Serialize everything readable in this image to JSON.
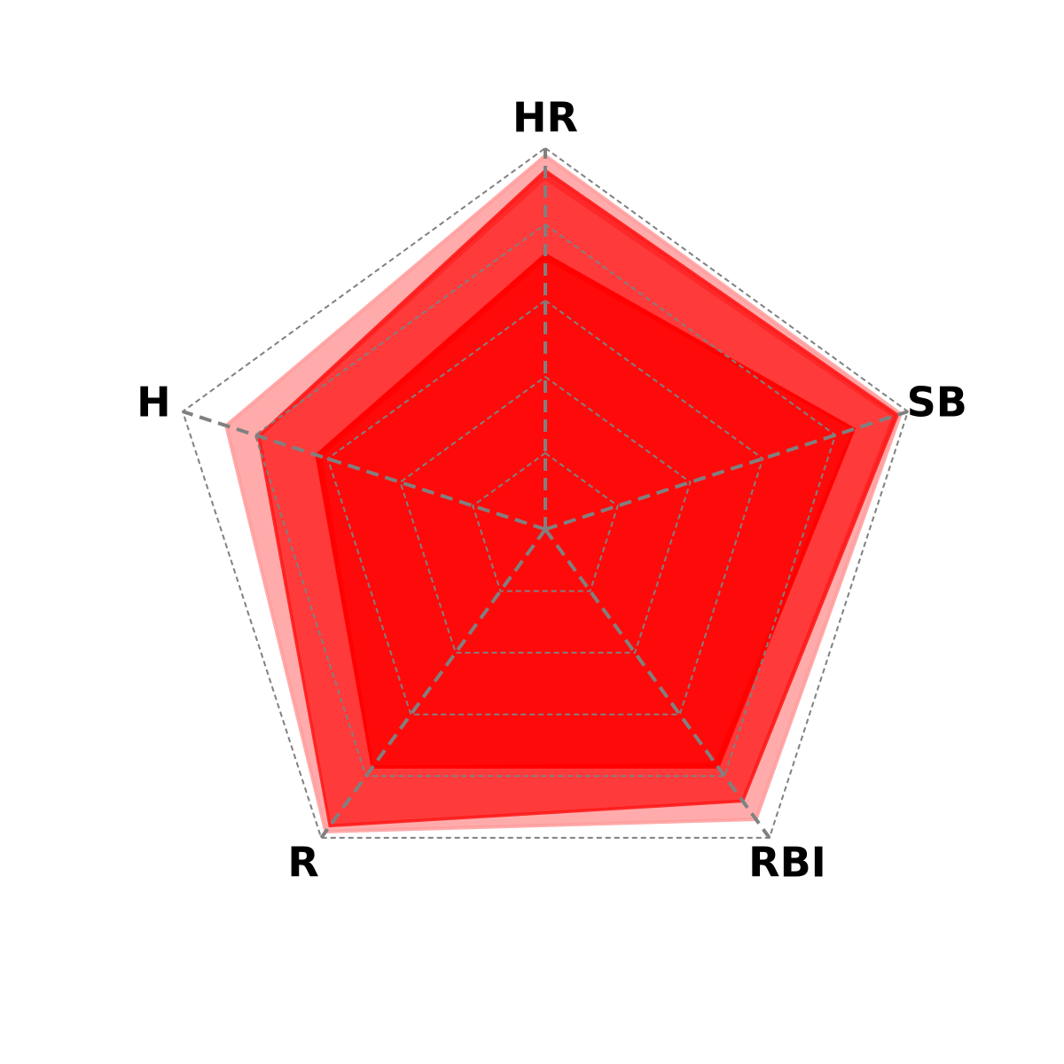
{
  "chart_data": {
    "type": "radar",
    "axes": [
      "HR",
      "SB",
      "RBI",
      "R",
      "H"
    ],
    "series": [
      {
        "values": [
          0.98,
          0.98,
          0.94,
          0.98,
          0.88
        ],
        "color": "#ff9c9c",
        "opacity": 0.85
      },
      {
        "values": [
          0.94,
          0.97,
          0.88,
          0.96,
          0.79
        ],
        "color": "#ff1a1a",
        "opacity": 0.9
      },
      {
        "values": [
          0.91,
          0.95,
          0.87,
          0.95,
          0.78
        ],
        "color": "#ff3a3a",
        "opacity": 1.0
      },
      {
        "values": [
          0.72,
          0.85,
          0.77,
          0.77,
          0.63
        ],
        "color": "#ff0000",
        "opacity": 0.95
      },
      {
        "values": [
          0.7,
          0.84,
          0.75,
          0.76,
          0.61
        ],
        "color": "#ff0a0a",
        "opacity": 1.0
      }
    ],
    "rlim": [
      0,
      1
    ],
    "rings": [
      0.2,
      0.4,
      0.6,
      0.8,
      1.0
    ],
    "grid": true,
    "legend": "none"
  }
}
